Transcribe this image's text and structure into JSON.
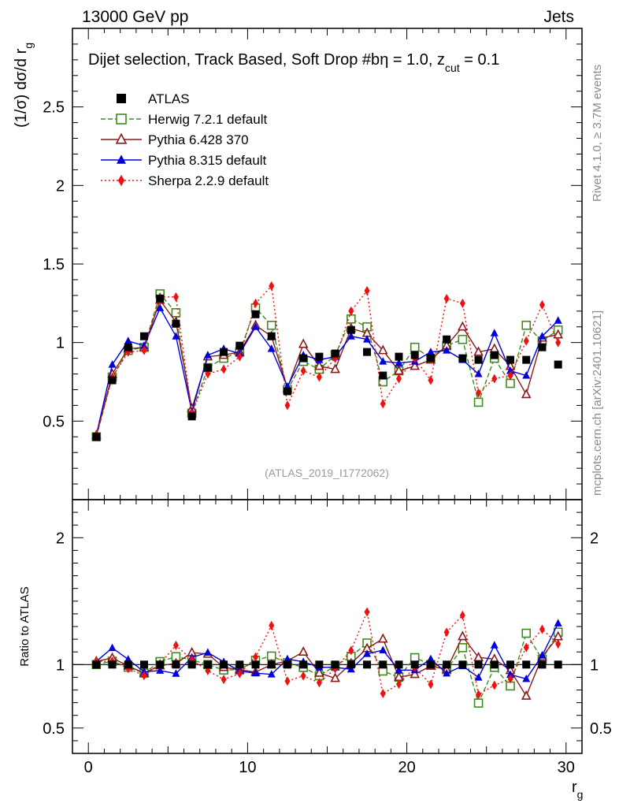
{
  "header": {
    "left": "13000 GeV pp",
    "right": "Jets"
  },
  "side_labels": {
    "rivet": "Rivet 4.1.0, ≥ 3.7M events",
    "mcplots": "mcplots.cern.ch [arXiv:2401.10621]"
  },
  "chart_data": {
    "type": "scatter",
    "title": "Dijet selection, Track Based, Soft Drop #b",
    "title_tail": "η = 1.0, z",
    "title_sub": "cut",
    "title_end": " = 0.1",
    "watermark": "(ATLAS_2019_I1772062)",
    "xlabel": "r",
    "xlabel_sub": "g",
    "ylabel": "(1/σ) dσ/d r",
    "ylabel_sub": "g",
    "ratio_ylabel": "Ratio to ATLAS",
    "xlim": [
      -1,
      31
    ],
    "ylim": [
      0,
      3
    ],
    "ratio_ylim": [
      0.3,
      2.3
    ],
    "x_ticks": [
      "0",
      "10",
      "20",
      "30"
    ],
    "y_ticks": [
      "0.5",
      "1",
      "1.5",
      "2",
      "2.5"
    ],
    "ratio_y_ticks": [
      "0.5",
      "1",
      "2"
    ],
    "x": [
      0.5,
      1.5,
      2.5,
      3.5,
      4.5,
      5.5,
      6.5,
      7.5,
      8.5,
      9.5,
      10.5,
      11.5,
      12.5,
      13.5,
      14.5,
      15.5,
      16.5,
      17.5,
      18.5,
      19.5,
      20.5,
      21.5,
      22.5,
      23.5,
      24.5,
      25.5,
      26.5,
      27.5,
      28.5,
      29.5
    ],
    "series": [
      {
        "name": "ATLAS",
        "color": "#000000",
        "marker": "square-filled",
        "line": "none",
        "values": [
          0.4,
          0.76,
          0.97,
          1.04,
          1.28,
          1.12,
          0.53,
          0.84,
          0.94,
          0.98,
          1.18,
          1.04,
          0.69,
          0.9,
          0.91,
          0.93,
          1.08,
          0.94,
          0.79,
          0.91,
          0.92,
          0.9,
          1.02,
          0.9,
          0.89,
          0.92,
          0.89,
          0.89,
          0.97,
          0.86
        ]
      },
      {
        "name": "Herwig 7.2.1 default",
        "color": "#3d8c1c",
        "marker": "square-open",
        "line": "dashed",
        "values": [
          0.4,
          0.78,
          0.95,
          0.97,
          1.31,
          1.19,
          0.55,
          0.84,
          0.9,
          0.94,
          1.22,
          1.11,
          0.7,
          0.88,
          0.83,
          0.92,
          1.15,
          1.1,
          0.75,
          0.82,
          0.97,
          0.9,
          0.98,
          1.02,
          0.62,
          0.9,
          0.74,
          1.11,
          1.01,
          1.08
        ]
      },
      {
        "name": "Pythia 6.428 370",
        "color": "#8b1a1a",
        "marker": "triangle-open",
        "line": "solid",
        "values": [
          0.41,
          0.8,
          0.96,
          0.97,
          1.27,
          1.13,
          0.58,
          0.91,
          0.92,
          0.94,
          1.11,
          1.04,
          0.71,
          0.99,
          0.85,
          0.83,
          1.09,
          1.06,
          0.95,
          0.82,
          0.85,
          0.89,
          0.98,
          1.1,
          0.94,
          0.96,
          0.85,
          0.67,
          1.03,
          1.05
        ]
      },
      {
        "name": "Pythia 8.315 default",
        "color": "#0000dd",
        "marker": "triangle-filled",
        "line": "solid",
        "values": [
          0.41,
          0.86,
          1.01,
          0.98,
          1.22,
          1.04,
          0.56,
          0.92,
          0.96,
          0.93,
          1.1,
          0.96,
          0.72,
          0.92,
          0.89,
          0.91,
          1.04,
          1.02,
          0.88,
          0.87,
          0.88,
          0.94,
          0.95,
          0.89,
          0.8,
          1.06,
          0.82,
          0.79,
          1.04,
          1.14
        ]
      },
      {
        "name": "Sherpa 2.2.9 default",
        "color": "#ee1111",
        "marker": "diamond-filled",
        "line": "dotted",
        "values": [
          0.41,
          0.78,
          0.94,
          0.95,
          1.29,
          1.29,
          0.55,
          0.8,
          0.83,
          0.91,
          1.25,
          1.36,
          0.6,
          0.82,
          0.78,
          0.9,
          1.2,
          1.33,
          0.61,
          0.77,
          0.9,
          0.76,
          1.28,
          1.25,
          0.68,
          0.77,
          0.79,
          1.01,
          1.24,
          1.0
        ]
      }
    ]
  }
}
